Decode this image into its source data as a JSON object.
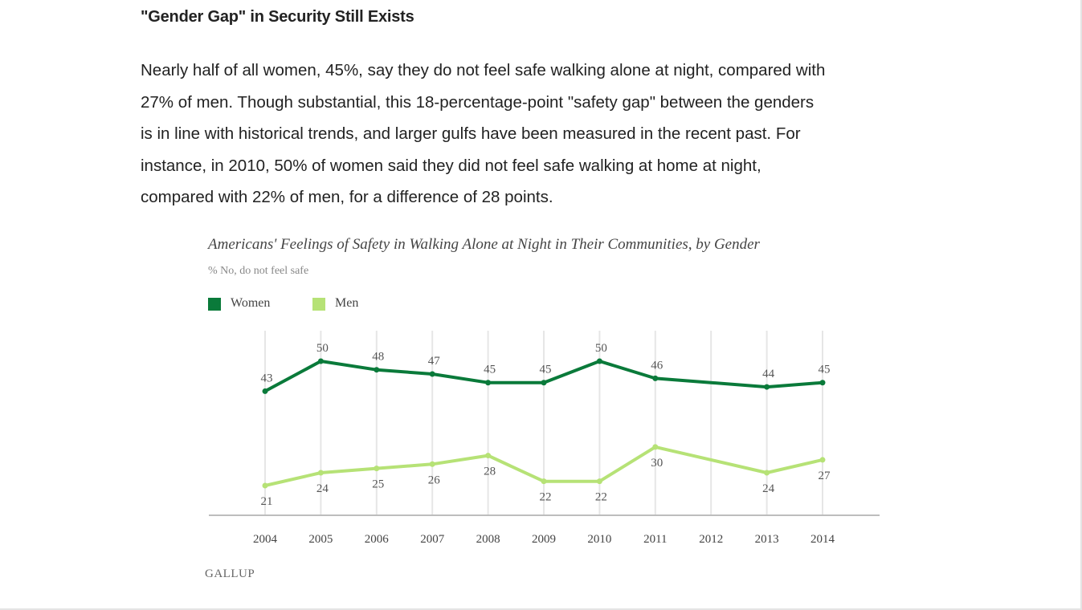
{
  "headline": "\"Gender Gap\" in Security Still Exists",
  "article": {
    "lines": [
      "Nearly half of all women, 45%, say they do not feel safe walking alone at night, compared with",
      "27% of men. Though substantial, this 18-percentage-point \"safety gap\" between the genders",
      "is in line with historical trends, and larger gulfs have been measured in the recent past. For",
      "instance, in 2010, 50% of women said they did not feel safe walking at home at night,",
      "compared with 22% of men, for a difference of 28 points."
    ]
  },
  "source": "GALLUP",
  "chart_data": {
    "type": "line",
    "title": "Americans' Feelings of Safety in Walking Alone at Night in Their Communities, by Gender",
    "subtitle": "% No, do not feel safe",
    "xlabel": "",
    "ylabel": "",
    "x": [
      "2004",
      "2005",
      "2006",
      "2007",
      "2008",
      "2009",
      "2010",
      "2011",
      "2012",
      "2013",
      "2014"
    ],
    "ylim": [
      10,
      55
    ],
    "grid": "vertical",
    "legend": "top-left",
    "series": [
      {
        "name": "Women",
        "color": "#0a7a3a",
        "values": [
          43,
          50,
          48,
          47,
          45,
          45,
          50,
          46,
          null,
          44,
          45
        ],
        "labels": [
          "43",
          "50",
          "48",
          "47",
          "45",
          "45",
          "50",
          "46",
          "",
          "44",
          "45"
        ],
        "label_position": "above"
      },
      {
        "name": "Men",
        "color": "#b6e276",
        "values": [
          21,
          24,
          25,
          26,
          28,
          22,
          22,
          30,
          null,
          24,
          27
        ],
        "labels": [
          "21",
          "24",
          "25",
          "26",
          "28",
          "22",
          "22",
          "30",
          "",
          "24",
          "27"
        ],
        "label_position": "below"
      }
    ]
  }
}
